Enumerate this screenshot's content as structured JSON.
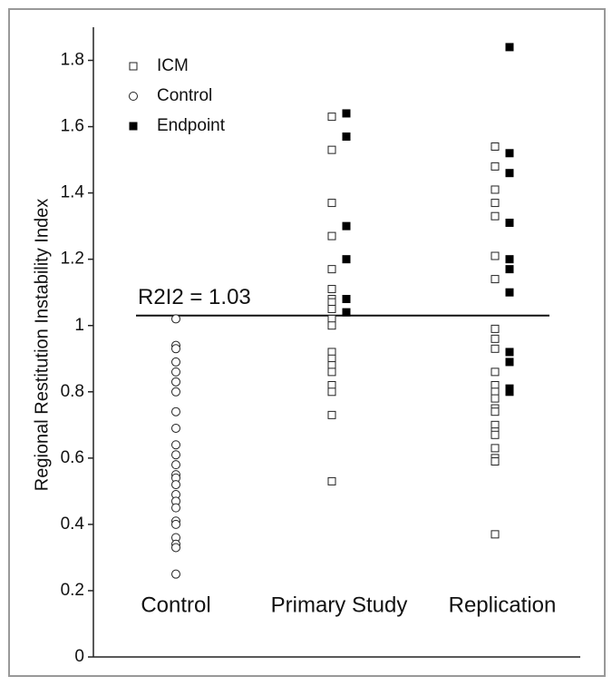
{
  "chart_data": {
    "type": "strip",
    "y_label": "Regional Restitution Instability Index",
    "categories": [
      "Control",
      "Primary Study",
      "Replication"
    ],
    "ylim": [
      0,
      1.9
    ],
    "yticks": [
      0,
      0.2,
      0.4,
      0.6,
      0.8,
      1,
      1.2,
      1.4,
      1.6,
      1.8
    ],
    "threshold": {
      "label": "R2I2 = 1.03",
      "value": 1.03
    },
    "series": [
      {
        "name": "ICM",
        "marker": "open-square",
        "color": "#222222",
        "values": [
          [],
          [
            1.63,
            1.53,
            1.37,
            1.27,
            1.17,
            1.11,
            1.08,
            1.07,
            1.05,
            1.02,
            1.0,
            0.92,
            0.9,
            0.88,
            0.86,
            0.82,
            0.8,
            0.73,
            0.53
          ],
          [
            1.54,
            1.48,
            1.41,
            1.37,
            1.33,
            1.21,
            1.14,
            0.99,
            0.96,
            0.93,
            0.86,
            0.82,
            0.8,
            0.78,
            0.75,
            0.74,
            0.7,
            0.68,
            0.67,
            0.63,
            0.6,
            0.59,
            0.37
          ]
        ]
      },
      {
        "name": "Control",
        "marker": "open-circle",
        "color": "#222222",
        "values": [
          [
            1.02,
            0.94,
            0.93,
            0.89,
            0.86,
            0.83,
            0.8,
            0.74,
            0.69,
            0.64,
            0.61,
            0.58,
            0.55,
            0.54,
            0.52,
            0.49,
            0.47,
            0.45,
            0.41,
            0.4,
            0.36,
            0.34,
            0.33,
            0.25
          ],
          [],
          []
        ]
      },
      {
        "name": "Endpoint",
        "marker": "filled-square",
        "color": "#000000",
        "values": [
          [],
          [
            1.64,
            1.57,
            1.3,
            1.2,
            1.08,
            1.04
          ],
          [
            1.84,
            1.52,
            1.46,
            1.31,
            1.2,
            1.17,
            1.1,
            0.92,
            0.89,
            0.81,
            0.8
          ]
        ]
      }
    ]
  }
}
